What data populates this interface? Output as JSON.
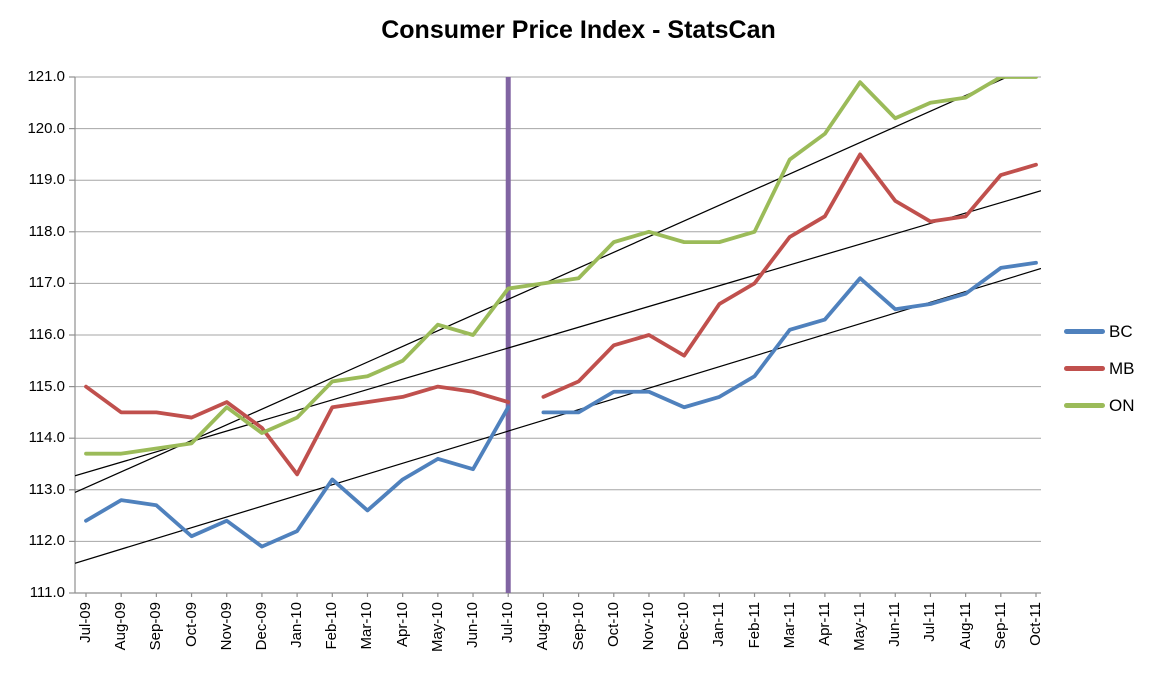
{
  "chart_data": {
    "type": "line",
    "title": "Consumer Price Index - StatsCan",
    "categories": [
      "Jul-09",
      "Aug-09",
      "Sep-09",
      "Oct-09",
      "Nov-09",
      "Dec-09",
      "Jan-10",
      "Feb-10",
      "Mar-10",
      "Apr-10",
      "May-10",
      "Jun-10",
      "Jul-10",
      "Aug-10",
      "Sep-10",
      "Oct-10",
      "Nov-10",
      "Dec-10",
      "Jan-11",
      "Feb-11",
      "Mar-11",
      "Apr-11",
      "May-11",
      "Jun-11",
      "Jul-11",
      "Aug-11",
      "Sep-11",
      "Oct-11"
    ],
    "series": [
      {
        "name": "BC",
        "color": "#4F81BD",
        "values": [
          112.4,
          112.8,
          112.7,
          112.1,
          112.4,
          111.9,
          112.2,
          113.2,
          112.6,
          113.2,
          113.6,
          113.4,
          114.6,
          114.5,
          114.5,
          114.9,
          114.9,
          114.6,
          114.8,
          115.2,
          116.1,
          116.3,
          117.1,
          116.5,
          116.6,
          116.8,
          117.3,
          117.4
        ],
        "gap_after": "Jul-10"
      },
      {
        "name": "MB",
        "color": "#C0504D",
        "values": [
          115.0,
          114.5,
          114.5,
          114.4,
          114.7,
          114.2,
          113.3,
          114.6,
          114.7,
          114.8,
          115.0,
          114.9,
          114.7,
          114.8,
          115.1,
          115.8,
          116.0,
          115.6,
          116.6,
          117.0,
          117.9,
          118.3,
          119.5,
          118.6,
          118.2,
          118.3,
          119.1,
          119.3
        ],
        "gap_after": "Jul-10"
      },
      {
        "name": "ON",
        "color": "#9BBB59",
        "values": [
          113.7,
          113.7,
          113.8,
          113.9,
          114.6,
          114.1,
          114.4,
          115.1,
          115.2,
          115.5,
          116.2,
          116.0,
          116.9,
          117.0,
          117.1,
          117.8,
          118.0,
          117.8,
          117.8,
          118.0,
          119.4,
          119.9,
          120.9,
          120.2,
          120.5,
          120.6,
          121.0,
          121.0
        ]
      }
    ],
    "trendlines": {
      "type": "linear",
      "color": "#000000",
      "applies_to": [
        "BC",
        "MB",
        "ON"
      ]
    },
    "marker_line": {
      "category": "Jul-10",
      "color": "#8064A2",
      "note": "vertical divider, BC and MB lines break for one month after it"
    },
    "y_axis": {
      "min": 111.0,
      "max": 121.0,
      "step": 1.0,
      "labels": [
        "111.0",
        "112.0",
        "113.0",
        "114.0",
        "115.0",
        "116.0",
        "117.0",
        "118.0",
        "119.0",
        "120.0",
        "121.0"
      ]
    },
    "grid": "horizontal",
    "legend_position": "right",
    "legend": [
      "BC",
      "MB",
      "ON"
    ]
  },
  "style_colors": {
    "background": "#FFFFFF",
    "gridline": "#A6A6A6",
    "axis": "#8F8F8F",
    "text": "#000000"
  }
}
